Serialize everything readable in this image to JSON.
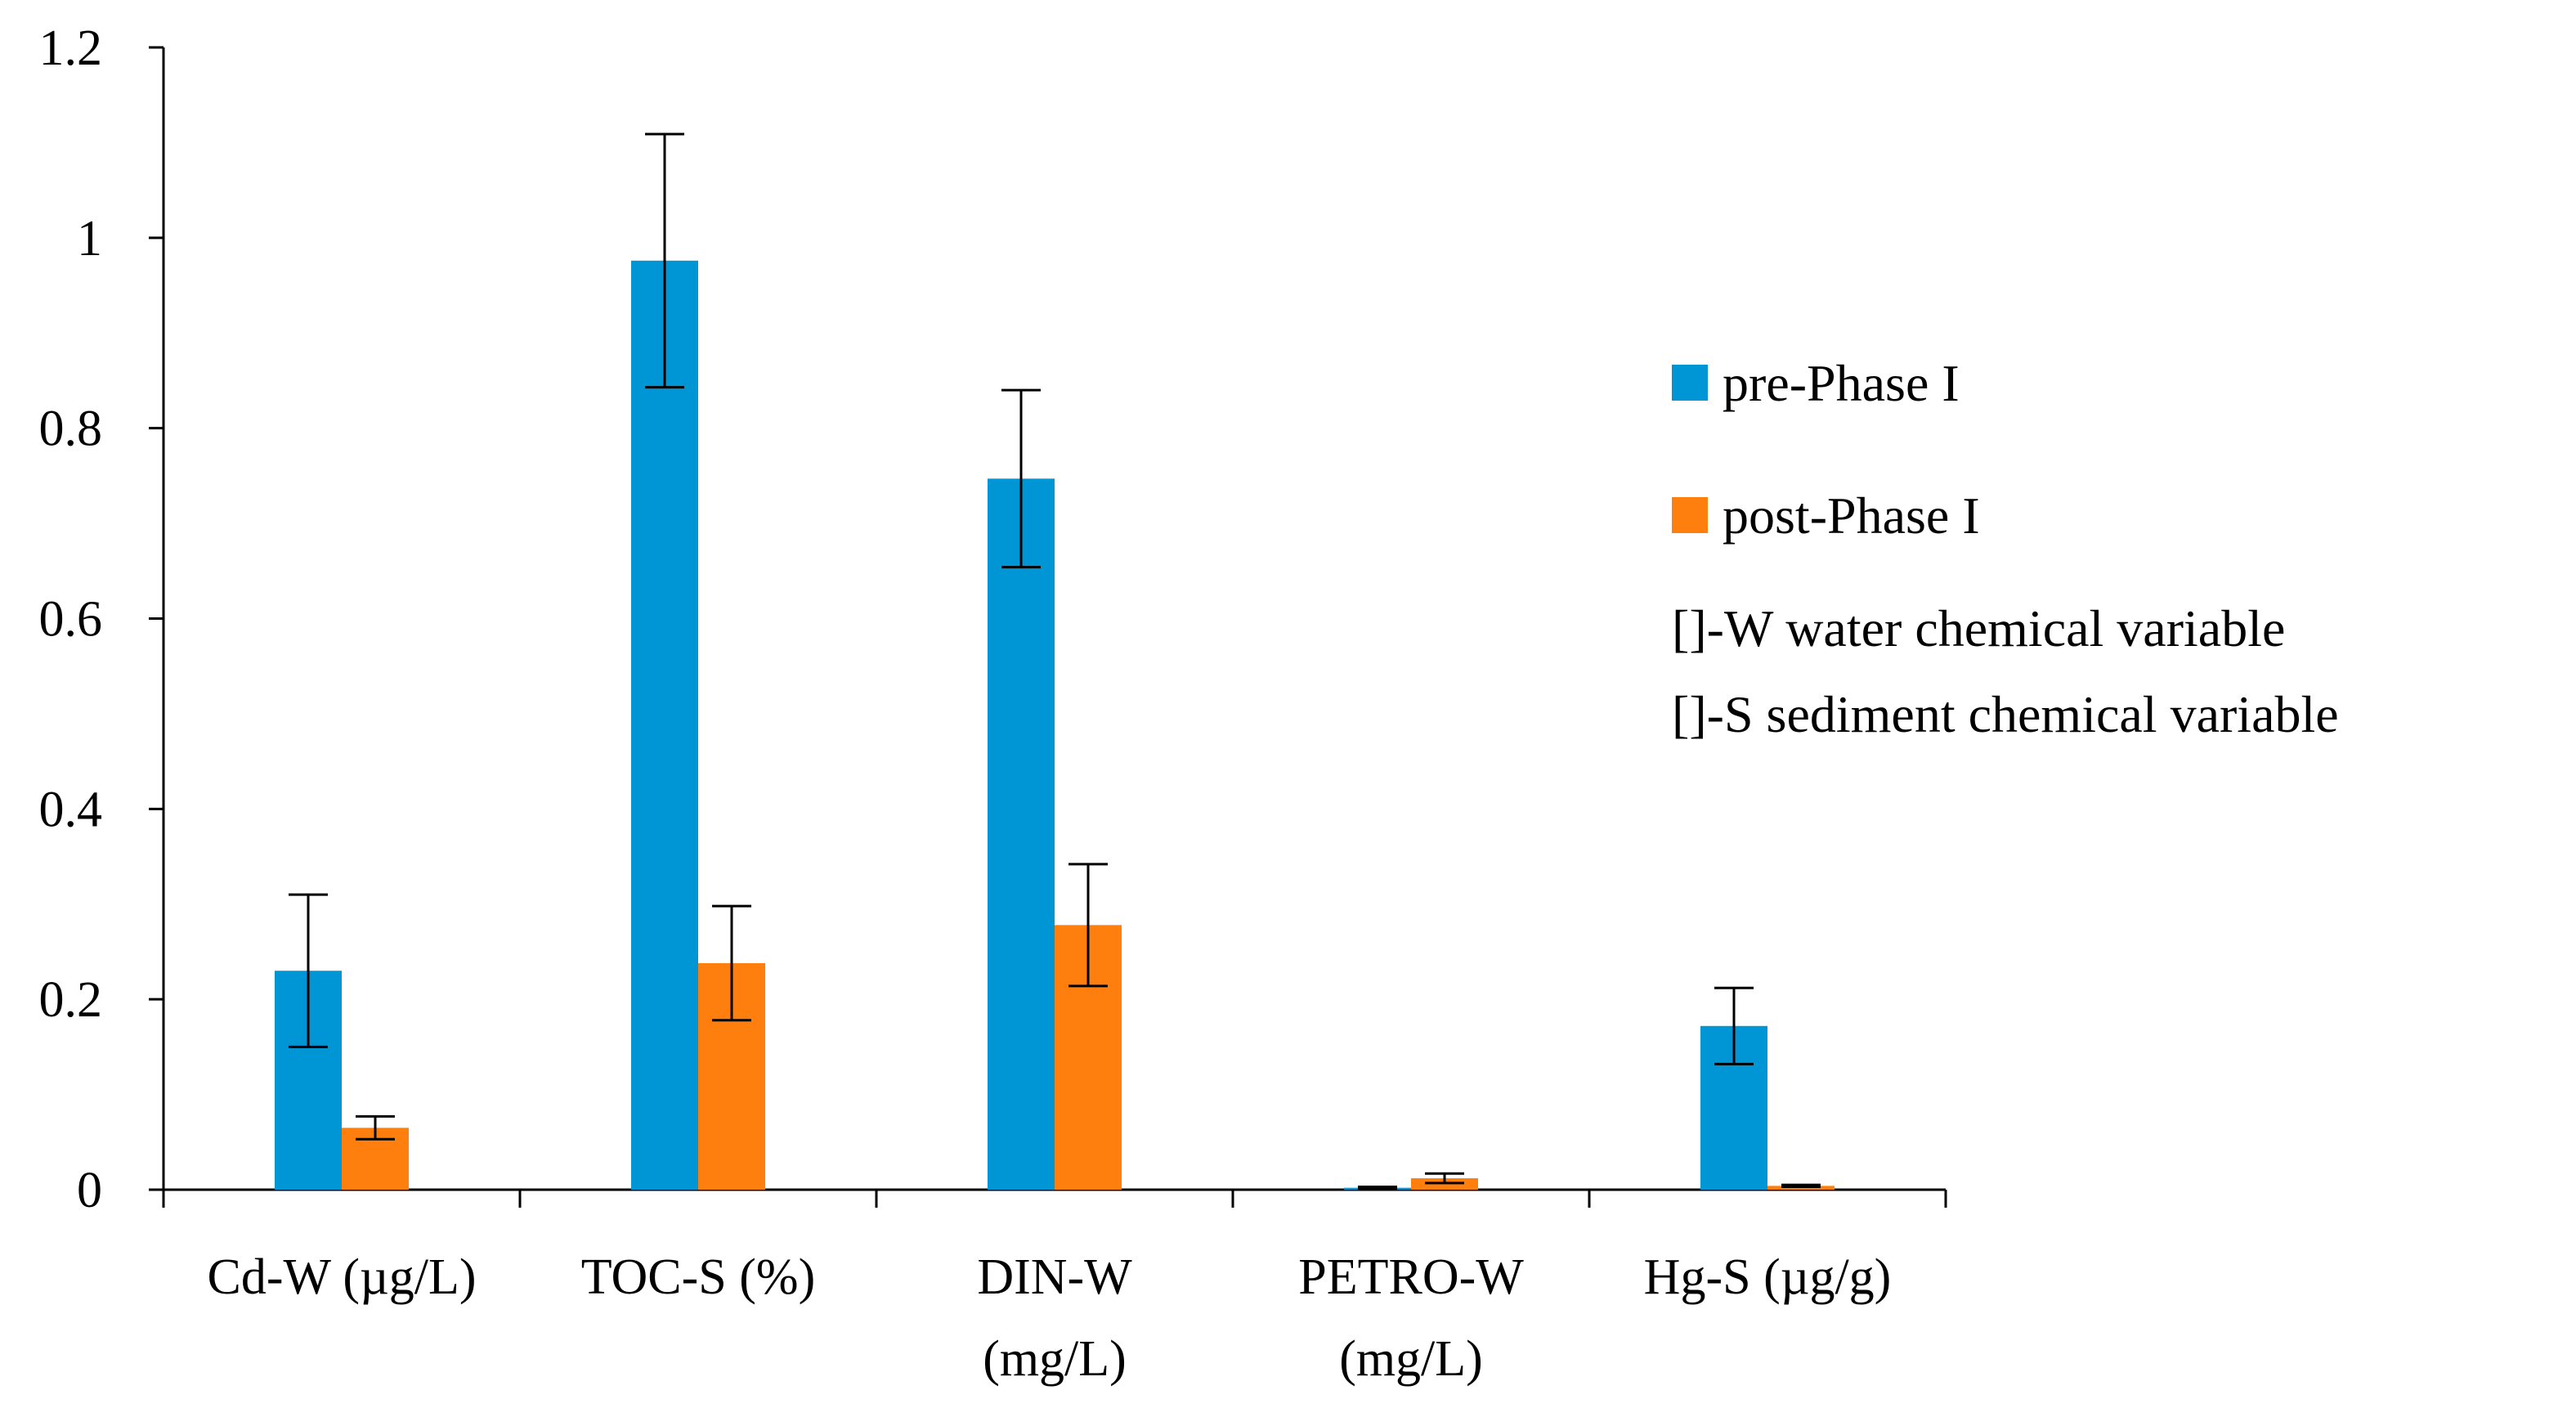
{
  "chart_data": {
    "type": "bar",
    "categories": [
      [
        "Cd-W (µg/L)"
      ],
      [
        "TOC-S (%)"
      ],
      [
        "DIN-W",
        "(mg/L)"
      ],
      [
        "PETRO-W",
        "(mg/L)"
      ],
      [
        "Hg-S (µg/g)"
      ]
    ],
    "series": [
      {
        "name": "pre-Phase I",
        "color": "#0096D6",
        "values": [
          0.23,
          0.976,
          0.747,
          0.002,
          0.172
        ],
        "error": [
          0.08,
          0.133,
          0.093,
          0.001,
          0.04
        ]
      },
      {
        "name": "post-Phase I",
        "color": "#FF7F0E",
        "values": [
          0.065,
          0.238,
          0.278,
          0.012,
          0.004
        ],
        "error": [
          0.012,
          0.06,
          0.064,
          0.005,
          0.001
        ]
      }
    ],
    "ylim": [
      0,
      1.2
    ],
    "yticks": [
      0,
      0.2,
      0.4,
      0.6,
      0.8,
      1,
      1.2
    ],
    "ytick_labels": [
      "0",
      "0.2",
      "0.4",
      "0.6",
      "0.8",
      "1",
      "1.2"
    ],
    "legend_notes": [
      "[]-W water chemical variable",
      "[]-S sediment chemical variable"
    ],
    "legend_position": "right",
    "grid": false,
    "title": "",
    "xlabel": "",
    "ylabel": ""
  }
}
